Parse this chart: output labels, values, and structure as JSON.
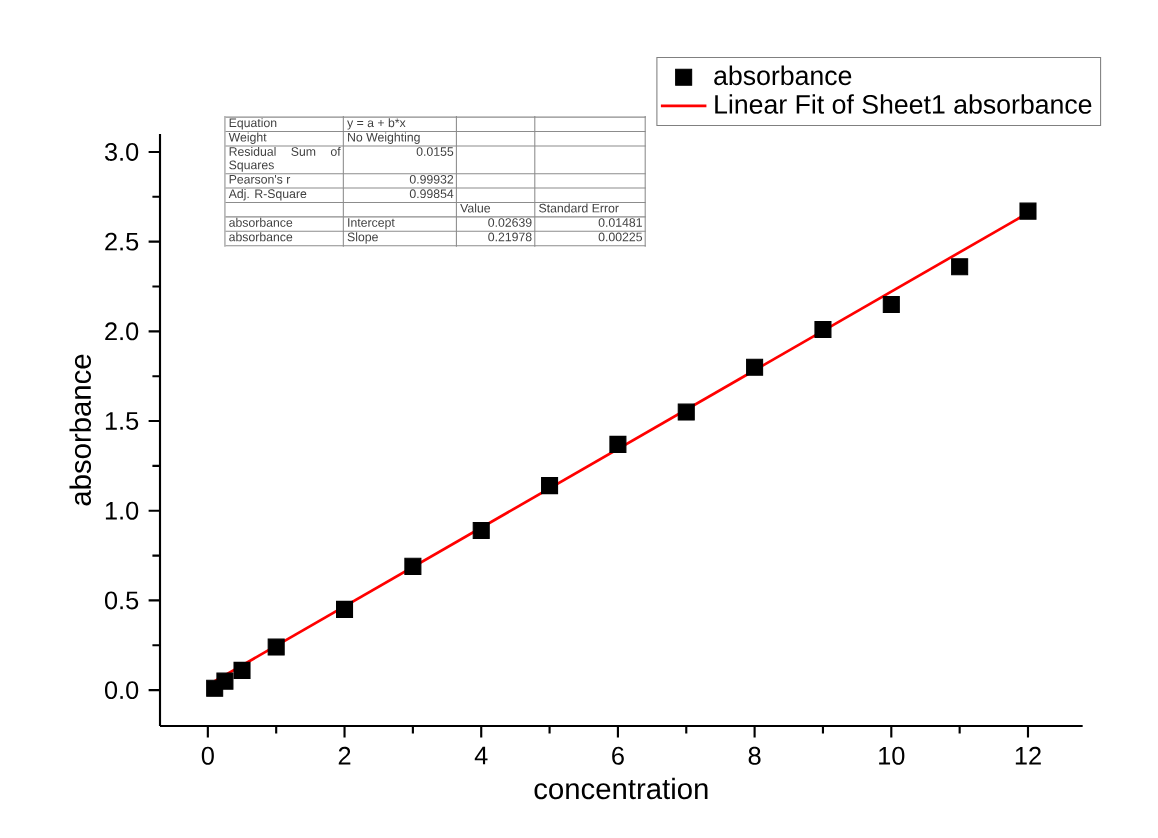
{
  "chart_data": {
    "type": "scatter",
    "xlabel": "concentration",
    "ylabel": "absorbance",
    "xlim": [
      -0.7,
      12.8
    ],
    "ylim": [
      -0.2,
      3.1
    ],
    "xticks": [
      0,
      2,
      4,
      6,
      8,
      10,
      12
    ],
    "yticks": [
      {
        "value": 0,
        "label": "0.0"
      },
      {
        "value": 0.5,
        "label": "0.5"
      },
      {
        "value": 1,
        "label": "1.0"
      },
      {
        "value": 1.5,
        "label": "1.5"
      },
      {
        "value": 2,
        "label": "2.0"
      },
      {
        "value": 2.5,
        "label": "2.5"
      },
      {
        "value": 3,
        "label": "3.0"
      }
    ],
    "grid": false,
    "legend": "top right",
    "series": [
      {
        "name": "absorbance",
        "marker": "square",
        "color": "#000000",
        "x": [
          0.1,
          0.25,
          0.5,
          1,
          2,
          3,
          4,
          5,
          6,
          7,
          8,
          9,
          10,
          11,
          12
        ],
        "values": [
          0.01,
          0.05,
          0.11,
          0.24,
          0.45,
          0.69,
          0.89,
          1.14,
          1.37,
          1.55,
          1.8,
          2.01,
          2.15,
          2.36,
          2.67
        ]
      },
      {
        "name": "Linear Fit of Sheet1 absorbance",
        "type": "line",
        "marker": "none",
        "line_style": "solid",
        "color": "#ff0000",
        "x": [
          0.1,
          12
        ],
        "values": [
          0.05,
          2.66
        ]
      }
    ],
    "annotations": [
      "Equation",
      "y = a + b*x",
      "Weight",
      "No Weighting",
      "Residual Sum of Squares",
      "0.0155",
      "Pearson's r",
      "0.99932",
      "Adj. R-Square",
      "0.99854",
      "Value",
      "Standard Error",
      "absorbance",
      "Intercept",
      "0.02639",
      "0.01481",
      "absorbance",
      "Slope",
      "0.21978",
      "0.00225"
    ]
  }
}
